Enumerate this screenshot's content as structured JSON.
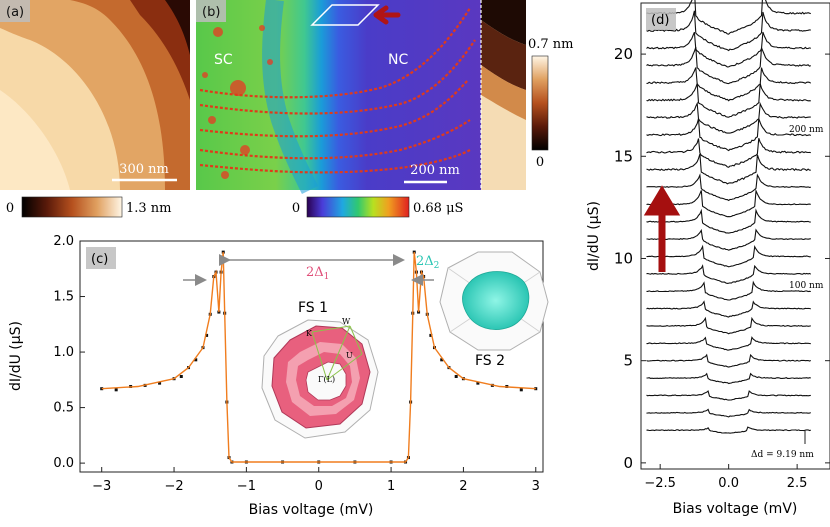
{
  "panels": {
    "a": {
      "label": "(a)",
      "scalebar": "300 nm",
      "colorbar": {
        "min": "0",
        "max": "1.3 nm"
      }
    },
    "b": {
      "label": "(b)",
      "region_left": "SC",
      "region_right": "NC",
      "scalebar": "200 nm",
      "colorbar": {
        "min": "0",
        "max": "0.68 μS"
      },
      "inset_colorbar": {
        "max": "0.7 nm",
        "min": "0"
      }
    },
    "c": {
      "label": "(c)",
      "gap1": "2Δ",
      "gap1_sub": "1",
      "gap2": "2Δ",
      "gap2_sub": "2",
      "fs1": "FS 1",
      "fs2": "FS 2",
      "fs1_points": [
        "K",
        "W",
        "U",
        "Γ(L)"
      ]
    },
    "d": {
      "label": "(d)",
      "side_labels": [
        "200 nm",
        "100 nm"
      ],
      "delta_label": "Δd = 9.19 nm"
    }
  },
  "colors": {
    "data_points": "#111111",
    "fit_curve": "#f07d1e",
    "gap1_label": "#e0507a",
    "gap2_label": "#2cc6b4",
    "arrow": "#a50f0f",
    "fs1_fill": "#e8607e",
    "fs2_fill": "#3ee6cc"
  },
  "chart_data": [
    {
      "panel": "c",
      "type": "scatter",
      "xlabel": "Bias voltage (mV)",
      "ylabel": "dI/dU (μS)",
      "xlim": [
        -3.3,
        3.1
      ],
      "ylim": [
        -0.08,
        2.0
      ],
      "xticks": [
        -3,
        -2,
        -1,
        0,
        1,
        2,
        3
      ],
      "yticks": [
        0.0,
        0.5,
        1.0,
        1.5,
        2.0
      ],
      "ytick_labels": [
        "0.0",
        "0.5",
        "1.0",
        "1.5",
        "2.0"
      ],
      "series": [
        {
          "style": "points",
          "x": [
            -3.0,
            -2.8,
            -2.6,
            -2.4,
            -2.2,
            -2.0,
            -1.9,
            -1.8,
            -1.7,
            -1.6,
            -1.55,
            -1.5,
            -1.45,
            -1.42,
            -1.38,
            -1.35,
            -1.32,
            -1.3,
            -1.27,
            -1.24,
            -1.2,
            -1.0,
            -0.5,
            0.0,
            0.5,
            1.0,
            1.2,
            1.24,
            1.27,
            1.3,
            1.32,
            1.35,
            1.38,
            1.42,
            1.45,
            1.5,
            1.55,
            1.6,
            1.7,
            1.8,
            1.9,
            2.0,
            2.2,
            2.4,
            2.6,
            2.8,
            3.0
          ],
          "y": [
            0.67,
            0.66,
            0.69,
            0.7,
            0.72,
            0.76,
            0.78,
            0.86,
            0.93,
            1.04,
            1.15,
            1.34,
            1.68,
            1.72,
            1.36,
            1.72,
            1.9,
            1.35,
            0.55,
            0.05,
            0.01,
            0.01,
            0.01,
            0.01,
            0.01,
            0.01,
            0.01,
            0.05,
            0.55,
            1.35,
            1.9,
            1.72,
            1.36,
            1.72,
            1.68,
            1.34,
            1.15,
            1.04,
            0.93,
            0.86,
            0.78,
            0.76,
            0.72,
            0.7,
            0.69,
            0.66,
            0.67
          ]
        },
        {
          "style": "fit-line",
          "x": [
            -3.0,
            -2.5,
            -2.0,
            -1.8,
            -1.6,
            -1.5,
            -1.45,
            -1.42,
            -1.38,
            -1.35,
            -1.32,
            -1.3,
            -1.27,
            -1.24,
            -1.2,
            0.0,
            1.2,
            1.24,
            1.27,
            1.3,
            1.32,
            1.35,
            1.38,
            1.42,
            1.45,
            1.5,
            1.6,
            1.8,
            2.0,
            2.5,
            3.0
          ],
          "y": [
            0.67,
            0.69,
            0.76,
            0.86,
            1.04,
            1.34,
            1.68,
            1.72,
            1.36,
            1.72,
            1.9,
            1.35,
            0.55,
            0.05,
            0.01,
            0.01,
            0.01,
            0.05,
            0.55,
            1.35,
            1.9,
            1.72,
            1.36,
            1.72,
            1.68,
            1.34,
            1.04,
            0.86,
            0.76,
            0.69,
            0.67
          ]
        }
      ]
    },
    {
      "panel": "d",
      "type": "line",
      "xlabel": "Bias voltage (mV)",
      "ylabel": "dI/dU (μS)",
      "xlim": [
        -3.2,
        3.7
      ],
      "ylim": [
        -0.3,
        22.5
      ],
      "xticks": [
        -2.5,
        0.0,
        2.5
      ],
      "xtick_labels": [
        "−2.5",
        "0.0",
        "2.5"
      ],
      "yticks": [
        0,
        5,
        10,
        15,
        20
      ],
      "ytick_labels": [
        "0",
        "5",
        "10",
        "15",
        "20"
      ],
      "n_curves": 25,
      "curve_offset": 0.85,
      "baseline_offset": 0.6
    }
  ]
}
